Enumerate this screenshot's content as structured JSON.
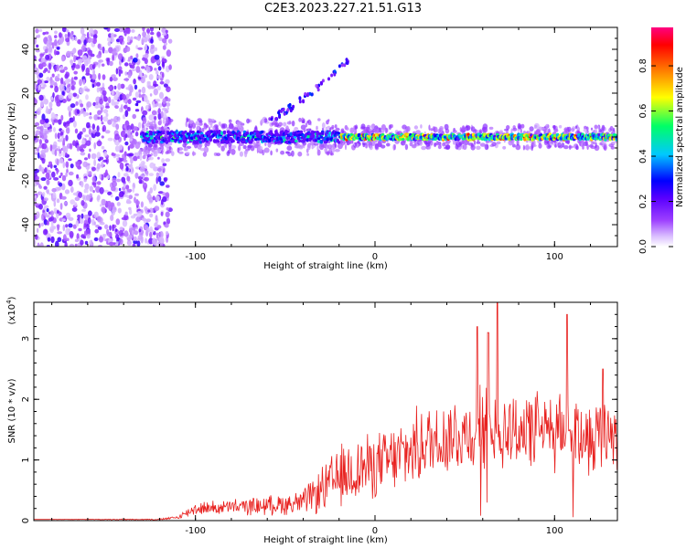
{
  "title": "C2E3.2023.227.21.51.G13",
  "chart_data": [
    {
      "type": "heatmap",
      "title": "",
      "xlabel": "Height of straight line (km)",
      "ylabel": "Frequency (Hz)",
      "xlim": [
        -190,
        135
      ],
      "ylim": [
        -50,
        50
      ],
      "x_ticks": [
        -100,
        0,
        100
      ],
      "y_ticks": [
        -40,
        -20,
        0,
        20,
        40
      ],
      "colorbar": {
        "label": "Normalized spectral amplitude",
        "range": [
          0.0,
          0.97
        ],
        "ticks": [
          "0.0",
          "0.2",
          "0.4",
          "0.6",
          "0.8"
        ],
        "colormap": [
          "#ffffff",
          "#c9a6ff",
          "#7a00ff",
          "#0000ff",
          "#00c8ff",
          "#00ff66",
          "#ffff00",
          "#ff8000",
          "#ff0000",
          "#ff0080"
        ]
      },
      "features": [
        {
          "name": "scattered noise",
          "x_range": [
            -190,
            -120
          ],
          "y_range": [
            -50,
            50
          ],
          "amplitude": 0.2
        },
        {
          "name": "central band",
          "x_range": [
            -130,
            135
          ],
          "y_center": 0,
          "amplitude_range": [
            0.3,
            0.9
          ]
        },
        {
          "name": "rising arc",
          "x_range": [
            -60,
            -15
          ],
          "y_range": [
            8,
            35
          ],
          "amplitude": 0.3
        }
      ]
    },
    {
      "type": "line",
      "title": "",
      "xlabel": "Height of straight line (km)",
      "ylabel": "SNR (10 * v/v)",
      "y_scale_label": "(x10",
      "y_scale_exp": "4",
      "y_scale_close": ")",
      "xlim": [
        -190,
        135
      ],
      "ylim": [
        0,
        3.6
      ],
      "x_ticks": [
        -100,
        0,
        100
      ],
      "y_ticks": [
        0,
        1,
        2,
        3
      ],
      "color": "#e8201e",
      "envelope": {
        "x": [
          -190,
          -120,
          -110,
          -100,
          -80,
          -60,
          -40,
          -30,
          -20,
          -10,
          0,
          10,
          20,
          30,
          40,
          50,
          60,
          70,
          80,
          90,
          100,
          110,
          120,
          135
        ],
        "mean": [
          0.02,
          0.02,
          0.05,
          0.2,
          0.22,
          0.25,
          0.3,
          0.5,
          0.7,
          0.85,
          0.9,
          1.0,
          1.15,
          1.3,
          1.4,
          1.45,
          1.5,
          1.5,
          1.5,
          1.5,
          1.45,
          1.45,
          1.4,
          1.5
        ],
        "amplitude": [
          0.0,
          0.01,
          0.03,
          0.1,
          0.12,
          0.15,
          0.2,
          0.35,
          0.5,
          0.55,
          0.5,
          0.55,
          0.6,
          0.6,
          0.65,
          0.65,
          0.7,
          0.7,
          0.65,
          0.6,
          0.6,
          0.6,
          0.6,
          0.6
        ]
      },
      "peaks": [
        [
          63,
          3.1
        ],
        [
          68,
          3.6
        ],
        [
          107,
          3.4
        ],
        [
          57,
          3.2
        ],
        [
          127,
          2.5
        ]
      ]
    }
  ]
}
